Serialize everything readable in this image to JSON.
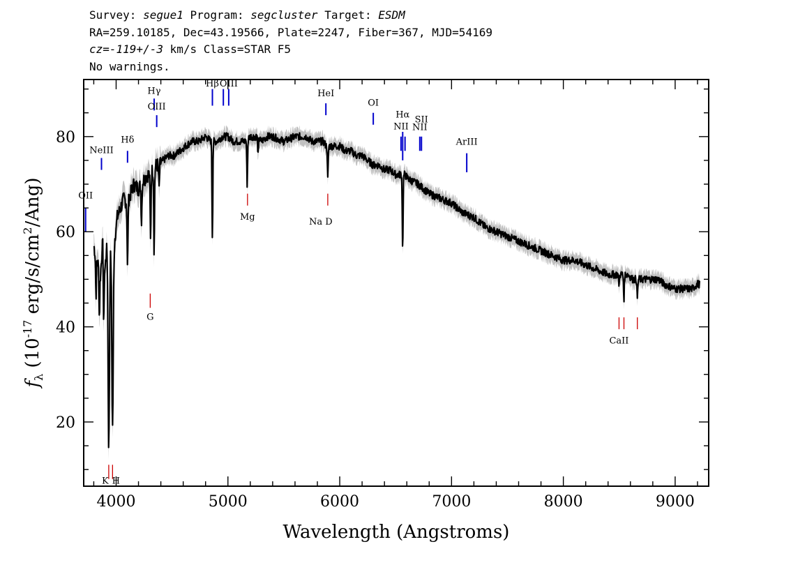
{
  "header": {
    "survey_label": "Survey:",
    "survey": "segue1",
    "program_label": "Program:",
    "program": "segcluster",
    "target_label": "Target:",
    "target": "ESDM",
    "line2": "RA=259.10185, Dec=43.19566, Plate=2247, Fiber=367, MJD=54169",
    "cz": "cz=-119+/-3",
    "line3_rest": " km/s Class=STAR F5",
    "line4": "No warnings."
  },
  "chart_data": {
    "type": "line",
    "xlabel": "Wavelength (Angstroms)",
    "ylabel": "f_λ (10^-17 erg/s/cm^2/Ang)",
    "xlim": [
      3710,
      9300
    ],
    "ylim": [
      6.5,
      92
    ],
    "xticks": [
      4000,
      5000,
      6000,
      7000,
      8000,
      9000
    ],
    "xtick_labels": [
      "4000",
      "5000",
      "6000",
      "7000",
      "8000",
      "9000"
    ],
    "yticks": [
      20,
      40,
      60,
      80
    ],
    "ytick_labels": [
      "20",
      "40",
      "60",
      "80"
    ],
    "colors": {
      "flux": "#000000",
      "error_band": "#c0c0c0",
      "emission": "#0000cc",
      "absorption": "#cc0000"
    },
    "series": [
      {
        "x": [
          3800,
          3830,
          3860,
          3880,
          3900,
          3930,
          3950,
          3970,
          3990,
          4010,
          4040,
          4070,
          4100,
          4130,
          4160,
          4200,
          4250,
          4280,
          4300,
          4330,
          4360,
          4380,
          4420,
          4470,
          4520,
          4570,
          4620,
          4680,
          4740,
          4800,
          4850,
          4900,
          4950,
          5000,
          5050,
          5100,
          5150,
          5200,
          5260,
          5300,
          5350,
          5400,
          5500,
          5600,
          5700,
          5750,
          5800,
          5850,
          5880,
          5900,
          5950,
          6000,
          6050,
          6100,
          6150,
          6200,
          6250,
          6300,
          6350,
          6400,
          6450,
          6500,
          6540,
          6563,
          6580,
          6620,
          6700,
          6800,
          6900,
          7000,
          7100,
          7200,
          7300,
          7400,
          7500,
          7600,
          7700,
          7800,
          7900,
          8000,
          8100,
          8200,
          8300,
          8400,
          8450,
          8500,
          8542,
          8580,
          8620,
          8662,
          8700,
          8750,
          8800,
          8850,
          8900,
          9000,
          9050,
          9100,
          9150,
          9200,
          9220
        ],
        "y": [
          57,
          54,
          51,
          58,
          52,
          61,
          57,
          56,
          59,
          63,
          65,
          67,
          66,
          68,
          70,
          69,
          71,
          72,
          72,
          73,
          74,
          74,
          75,
          76,
          76,
          77,
          78,
          79,
          79,
          80,
          79,
          79,
          80,
          80,
          79,
          79,
          79,
          80,
          80,
          79,
          80,
          80,
          79,
          80,
          80,
          79,
          79,
          79,
          78,
          78,
          78,
          78,
          77,
          77,
          76,
          76,
          75,
          74,
          74,
          73,
          73,
          72,
          72,
          72,
          72,
          71,
          70,
          68,
          67,
          66,
          64,
          63,
          61,
          60,
          59,
          58,
          57,
          56,
          55,
          54,
          54,
          53,
          52,
          51,
          51,
          51,
          51,
          51,
          50,
          50,
          50,
          50,
          50,
          50,
          49,
          48,
          48,
          48,
          48,
          49,
          49
        ]
      }
    ],
    "absorption_dips": [
      {
        "x": 3820,
        "y": 47
      },
      {
        "x": 3850,
        "y": 42
      },
      {
        "x": 3889,
        "y": 40
      },
      {
        "x": 3934,
        "y": 15
      },
      {
        "x": 3968,
        "y": 19
      },
      {
        "x": 4102,
        "y": 52
      },
      {
        "x": 4227,
        "y": 62
      },
      {
        "x": 4308,
        "y": 58
      },
      {
        "x": 4340,
        "y": 56
      },
      {
        "x": 4384,
        "y": 69
      },
      {
        "x": 4861,
        "y": 59
      },
      {
        "x": 5172,
        "y": 70
      },
      {
        "x": 5270,
        "y": 76
      },
      {
        "x": 5893,
        "y": 71
      },
      {
        "x": 6563,
        "y": 56
      },
      {
        "x": 8498,
        "y": 49
      },
      {
        "x": 8542,
        "y": 46
      },
      {
        "x": 8662,
        "y": 46
      }
    ],
    "annotations": [
      {
        "label": "OII",
        "x": 3727,
        "kind": "emission",
        "y_low": 60,
        "y_high": 65,
        "label_y": 67
      },
      {
        "label": "NeIII",
        "x": 3869,
        "kind": "emission",
        "y_low": 73,
        "y_high": 75.5,
        "label_y": 76.5
      },
      {
        "label": "Hδ",
        "x": 4102,
        "kind": "emission",
        "y_low": 74.5,
        "y_high": 77,
        "label_y": 78.7
      },
      {
        "label": "Hγ",
        "x": 4340,
        "kind": "emission",
        "y_low": 85.5,
        "y_high": 88,
        "label_y": 89
      },
      {
        "label": "OIII",
        "x": 4363,
        "kind": "emission",
        "y_low": 82,
        "y_high": 84.5,
        "label_y": 85.7
      },
      {
        "label": "Hβ",
        "x": 4861,
        "kind": "emission",
        "y_low": 86.5,
        "y_high": 90,
        "label_y": 90.5
      },
      {
        "label": "OIII",
        "x": 4959,
        "kind": "emission",
        "y_low": 86.5,
        "y_high": 90,
        "label_y": null
      },
      {
        "label": "OIII",
        "x": 5007,
        "kind": "emission",
        "y_low": 86.5,
        "y_high": 90,
        "label_y": 90.5
      },
      {
        "label": "HeI",
        "x": 5876,
        "kind": "emission",
        "y_low": 84.5,
        "y_high": 87,
        "label_y": 88.5
      },
      {
        "label": "OI",
        "x": 6300,
        "kind": "emission",
        "y_low": 82.5,
        "y_high": 85,
        "label_y": 86.5
      },
      {
        "label": "NII",
        "x": 6548,
        "kind": "emission",
        "y_low": 77,
        "y_high": 80,
        "label_y": 81.5
      },
      {
        "label": "Hα",
        "x": 6563,
        "kind": "emission",
        "y_low": 75,
        "y_high": 81,
        "label_y": 84
      },
      {
        "label": "NII",
        "x": 6584,
        "kind": "emission",
        "y_low": 77,
        "y_high": 80,
        "label_y": null
      },
      {
        "label": "NII",
        "x": 6716,
        "kind": "emission",
        "y_low": 77,
        "y_high": 80,
        "label_y": 81.4
      },
      {
        "label": "SII",
        "x": 6731,
        "kind": "emission",
        "y_low": 77,
        "y_high": 80,
        "label_y": 83
      },
      {
        "label": "ArIII",
        "x": 7136,
        "kind": "emission",
        "y_low": 72.5,
        "y_high": 76.5,
        "label_y": 78.3
      },
      {
        "label": "K",
        "x": 3934,
        "kind": "absorption",
        "y_low": 8,
        "y_high": 11,
        "label_y": 7
      },
      {
        "label": "H",
        "x": 3968,
        "kind": "absorption",
        "y_low": 8,
        "y_high": 11,
        "label_y": 7
      },
      {
        "label": "G",
        "x": 4305,
        "kind": "absorption",
        "y_low": 44,
        "y_high": 47,
        "label_y": 41.5
      },
      {
        "label": "Mg",
        "x": 5175,
        "kind": "absorption",
        "y_low": 65.5,
        "y_high": 68,
        "label_y": 62.5
      },
      {
        "label": "Na",
        "x": 5893,
        "kind": "absorption",
        "y_low": 65.5,
        "y_high": 68,
        "label_y": 61.5
      },
      {
        "label": "CaII",
        "x": 8498,
        "kind": "absorption",
        "y_low": 39.5,
        "y_high": 42,
        "label_y": 36.5
      },
      {
        "label": "CaII",
        "x": 8542,
        "kind": "absorption",
        "y_low": 39.5,
        "y_high": 42,
        "label_y": null
      },
      {
        "label": "CaII",
        "x": 8662,
        "kind": "absorption",
        "y_low": 39.5,
        "y_high": 42,
        "label_y": null
      }
    ]
  }
}
